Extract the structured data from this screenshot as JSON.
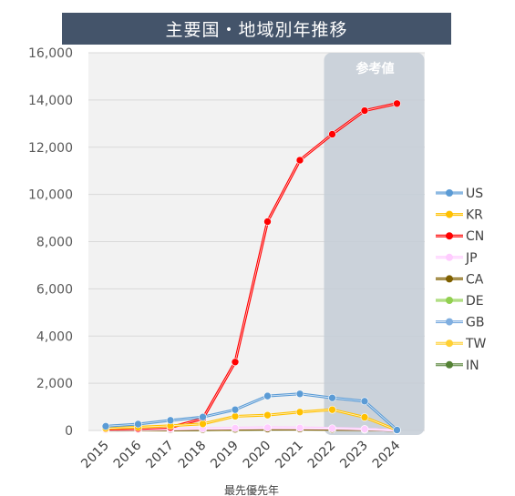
{
  "chart_data": {
    "type": "line",
    "title": "主要国・地域別年推移",
    "xlabel": "最先優先年",
    "ylabel": "",
    "reference_label": "参考値",
    "reference_range": [
      2022,
      2024
    ],
    "x": [
      2015,
      2016,
      2017,
      2018,
      2019,
      2020,
      2021,
      2022,
      2023,
      2024
    ],
    "ylim": [
      0,
      16000
    ],
    "yticks": [
      0,
      2000,
      4000,
      6000,
      8000,
      10000,
      12000,
      14000,
      16000
    ],
    "ytick_labels": [
      "0",
      "2,000",
      "4,000",
      "6,000",
      "8,000",
      "10,000",
      "12,000",
      "14,000",
      "16,000"
    ],
    "grid": true,
    "legend_position": "right",
    "series": [
      {
        "name": "US",
        "color": "#5b9bd5",
        "values": [
          180,
          270,
          430,
          570,
          880,
          1460,
          1550,
          1380,
          1240,
          20
        ]
      },
      {
        "name": "KR",
        "color": "#ffc000",
        "values": [
          90,
          140,
          200,
          280,
          600,
          650,
          780,
          880,
          560,
          15
        ]
      },
      {
        "name": "CN",
        "color": "#ff0000",
        "values": [
          60,
          80,
          130,
          500,
          2900,
          8850,
          11450,
          12550,
          13550,
          13850
        ]
      },
      {
        "name": "JP",
        "color": "#ffccff",
        "values": [
          30,
          40,
          60,
          80,
          100,
          120,
          110,
          90,
          60,
          5
        ]
      },
      {
        "name": "CA",
        "color": "#7f6000",
        "values": [
          20,
          25,
          30,
          40,
          50,
          60,
          60,
          50,
          40,
          5
        ]
      },
      {
        "name": "DE",
        "color": "#92d050",
        "values": [
          25,
          30,
          40,
          45,
          60,
          70,
          70,
          60,
          45,
          5
        ]
      },
      {
        "name": "GB",
        "color": "#7faee0",
        "values": [
          30,
          35,
          45,
          55,
          70,
          80,
          80,
          70,
          55,
          5
        ]
      },
      {
        "name": "TW",
        "color": "#ffd033",
        "values": [
          20,
          25,
          35,
          40,
          55,
          65,
          70,
          60,
          45,
          5
        ]
      },
      {
        "name": "IN",
        "color": "#548235",
        "values": [
          15,
          20,
          25,
          30,
          45,
          55,
          60,
          55,
          40,
          5
        ]
      }
    ]
  }
}
